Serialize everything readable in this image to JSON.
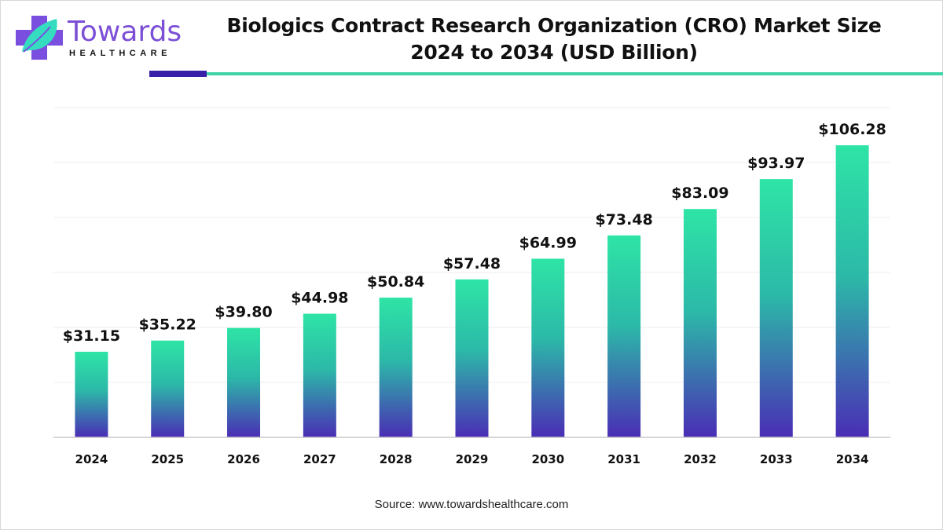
{
  "logo": {
    "word": "Towards",
    "sub": "HEALTHCARE"
  },
  "title_line1": "Biologics Contract Research Organization (CRO) Market Size",
  "title_line2": "2024 to 2034 (USD Billion)",
  "source": "Source: www.towardshealthcare.com",
  "colors": {
    "bar_top": "#2ee4a6",
    "bar_bottom": "#4a2db5",
    "accent_dark": "#3a1fa8",
    "accent_teal": "#3fd3a8",
    "brand_purple": "#7b4fd6"
  },
  "chart_data": {
    "type": "bar",
    "title": "Biologics Contract Research Organization (CRO) Market Size 2024 to 2034 (USD Billion)",
    "categories": [
      "2024",
      "2025",
      "2026",
      "2027",
      "2028",
      "2029",
      "2030",
      "2031",
      "2032",
      "2033",
      "2034"
    ],
    "values": [
      31.15,
      35.22,
      39.8,
      44.98,
      50.84,
      57.48,
      64.99,
      73.48,
      83.09,
      93.97,
      106.28
    ],
    "data_labels": [
      "$31.15",
      "$35.22",
      "$39.80",
      "$44.98",
      "$50.84",
      "$57.48",
      "$64.99",
      "$73.48",
      "$83.09",
      "$93.97",
      "$106.28"
    ],
    "xlabel": "",
    "ylabel": "",
    "ylim": [
      0,
      120
    ],
    "grid": true,
    "y_axis_labels_shown": false
  }
}
